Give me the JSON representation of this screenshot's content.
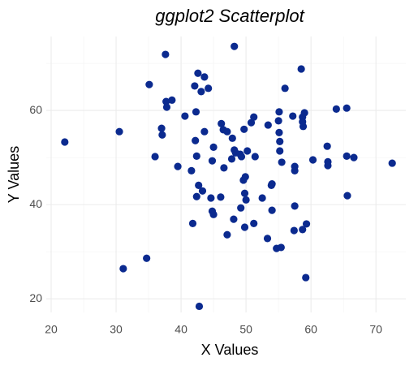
{
  "chart_data": {
    "type": "scatter",
    "title": "ggplot2 Scatterplot",
    "x_label": "X Values",
    "y_label": "Y Values",
    "color": "#0b2a8f",
    "grid": true,
    "xlim": [
      19.25,
      74.6
    ],
    "ylim": [
      17.1,
      75.7
    ],
    "xticks": [
      20,
      30,
      40,
      50,
      60,
      70
    ],
    "yticks": [
      20,
      40,
      60
    ],
    "xminor": [
      25,
      35,
      45,
      55,
      65
    ],
    "yminor": [
      30,
      50,
      70
    ],
    "series": [
      {
        "name": "points",
        "x": [
          22.1,
          30.5,
          31.1,
          34.7,
          35.1,
          36.0,
          37.0,
          37.1,
          37.6,
          37.7,
          37.8,
          38.6,
          39.5,
          40.6,
          41.6,
          41.8,
          42.1,
          42.3,
          42.2,
          42.4,
          42.4,
          42.7,
          42.6,
          42.8,
          43.1,
          43.3,
          43.6,
          43.6,
          44.2,
          44.6,
          44.8,
          45.0,
          44.8,
          45.0,
          46.1,
          46.2,
          46.5,
          46.6,
          47.1,
          47.1,
          47.8,
          47.9,
          48.1,
          48.2,
          48.2,
          48.4,
          49.1,
          49.2,
          49.3,
          49.6,
          49.7,
          49.8,
          49.9,
          49.8,
          50.0,
          50.2,
          50.8,
          51.2,
          51.2,
          51.4,
          52.5,
          53.3,
          53.4,
          53.9,
          54.0,
          54.0,
          54.7,
          55.0,
          55.1,
          55.1,
          55.2,
          55.2,
          55.4,
          55.5,
          56.0,
          57.2,
          57.4,
          57.5,
          57.5,
          57.5,
          58.5,
          58.7,
          58.7,
          58.7,
          58.8,
          59.0,
          59.2,
          59.3,
          60.3,
          62.5,
          62.6,
          62.6,
          63.9,
          65.5,
          65.5,
          65.6,
          66.6,
          72.5
        ],
        "values": [
          53.3,
          55.5,
          26.4,
          28.6,
          65.5,
          50.2,
          56.2,
          54.8,
          71.9,
          61.9,
          60.7,
          62.2,
          48.1,
          58.8,
          47.2,
          36.0,
          65.2,
          59.7,
          53.6,
          50.3,
          41.7,
          44.1,
          67.9,
          18.4,
          64.0,
          42.9,
          67.1,
          55.5,
          64.7,
          41.4,
          49.3,
          52.2,
          38.6,
          37.9,
          41.6,
          57.2,
          55.9,
          47.8,
          55.5,
          33.6,
          49.7,
          54.1,
          36.9,
          73.6,
          51.6,
          51.0,
          50.7,
          39.3,
          50.2,
          45.2,
          56.0,
          42.4,
          45.9,
          35.2,
          41.0,
          51.4,
          57.4,
          58.6,
          36.0,
          50.2,
          41.4,
          32.8,
          56.9,
          44.1,
          44.4,
          38.8,
          30.7,
          57.8,
          59.7,
          55.3,
          53.4,
          51.4,
          30.9,
          49.0,
          64.7,
          58.8,
          34.5,
          48.1,
          47.2,
          39.7,
          68.8,
          34.7,
          58.6,
          57.6,
          56.6,
          59.5,
          24.5,
          35.9,
          49.5,
          52.4,
          49.1,
          48.3,
          60.3,
          60.5,
          50.3,
          41.9,
          50.0,
          48.8
        ]
      }
    ]
  }
}
